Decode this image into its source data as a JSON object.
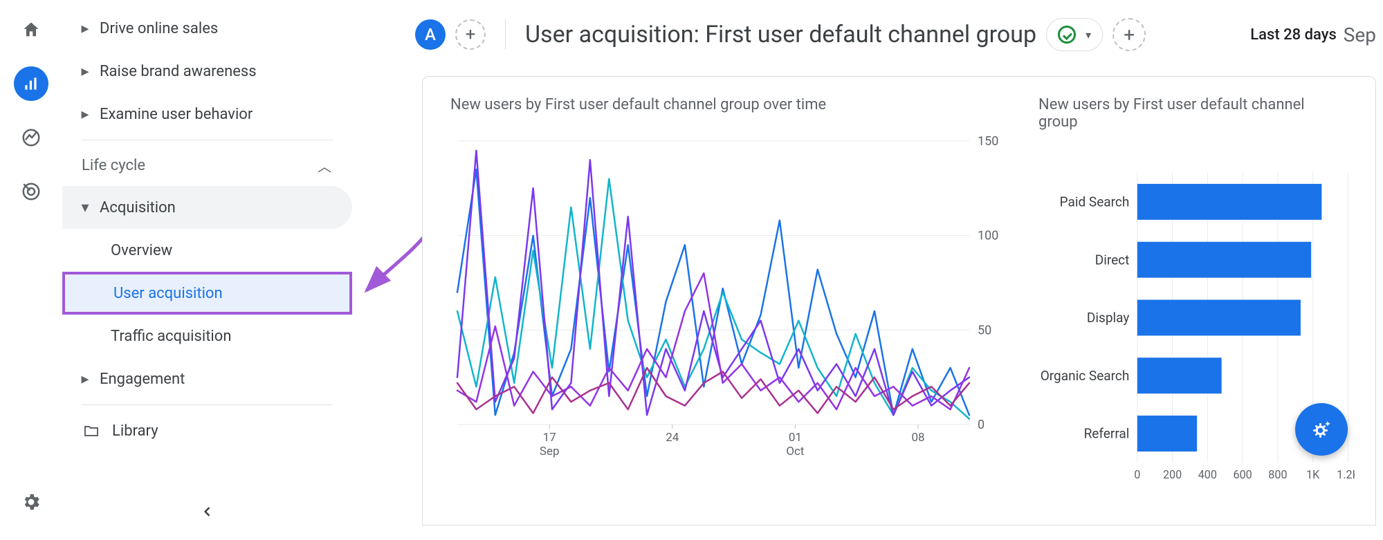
{
  "rail": {
    "icons": [
      "home",
      "reports",
      "explore",
      "advertising"
    ],
    "active_index": 1
  },
  "nav": {
    "objectives": [
      {
        "label": "Drive online sales"
      },
      {
        "label": "Raise brand awareness"
      },
      {
        "label": "Examine user behavior"
      }
    ],
    "section_label": "Life cycle",
    "acquisition": {
      "label": "Acquisition",
      "items": [
        {
          "label": "Overview"
        },
        {
          "label": "User acquisition",
          "selected": true
        },
        {
          "label": "Traffic acquisition"
        }
      ]
    },
    "engagement_label": "Engagement",
    "library_label": "Library"
  },
  "header": {
    "segment_letter": "A",
    "title": "User acquisition: First user default channel group",
    "date_range_label": "Last 28 days",
    "date_cutoff": "Sep"
  },
  "line_chart": {
    "title": "New users by First user default channel group over time",
    "type": "line",
    "ylim": [
      0,
      150
    ],
    "yticks": [
      0,
      50,
      100,
      150
    ],
    "x_ticks": [
      {
        "pos": 0.18,
        "top": "17",
        "bottom": "Sep"
      },
      {
        "pos": 0.42,
        "top": "24",
        "bottom": ""
      },
      {
        "pos": 0.66,
        "top": "01",
        "bottom": "Oct"
      },
      {
        "pos": 0.9,
        "top": "08",
        "bottom": ""
      }
    ],
    "plot_background": "#ffffff",
    "gridline_color": "#e8eaed",
    "line_width": 2.5,
    "series": [
      {
        "name": "Paid Search",
        "color": "#1a73e8",
        "values": [
          70,
          135,
          5,
          38,
          100,
          15,
          40,
          120,
          28,
          95,
          15,
          65,
          95,
          20,
          72,
          32,
          58,
          108,
          30,
          82,
          48,
          25,
          60,
          5,
          40,
          12,
          30,
          5
        ]
      },
      {
        "name": "Direct",
        "color": "#12b5cb",
        "values": [
          60,
          20,
          78,
          22,
          92,
          30,
          115,
          40,
          130,
          55,
          25,
          45,
          20,
          40,
          70,
          45,
          38,
          32,
          55,
          30,
          15,
          48,
          22,
          5,
          30,
          18,
          12,
          3
        ]
      },
      {
        "name": "Display",
        "color": "#7b39ed",
        "values": [
          25,
          145,
          12,
          35,
          125,
          8,
          22,
          140,
          15,
          110,
          5,
          40,
          18,
          60,
          25,
          40,
          55,
          22,
          40,
          18,
          32,
          15,
          40,
          5,
          28,
          10,
          18,
          25
        ]
      },
      {
        "name": "Organic Search",
        "color": "#9334e6",
        "values": [
          18,
          12,
          52,
          10,
          28,
          15,
          20,
          10,
          30,
          18,
          40,
          25,
          60,
          80,
          22,
          32,
          18,
          25,
          12,
          22,
          8,
          30,
          15,
          20,
          10,
          15,
          8,
          30
        ]
      },
      {
        "name": "Referral",
        "color": "#a8328f",
        "values": [
          22,
          8,
          15,
          20,
          6,
          25,
          12,
          18,
          22,
          8,
          30,
          15,
          10,
          22,
          28,
          14,
          24,
          10,
          18,
          6,
          20,
          12,
          25,
          8,
          15,
          20,
          10,
          22
        ]
      }
    ]
  },
  "bar_chart": {
    "title": "New users by First user default channel group",
    "type": "bar",
    "xlim": [
      0,
      1200
    ],
    "xticks": [
      {
        "pos": 0,
        "label": "0"
      },
      {
        "pos": 200,
        "label": "200"
      },
      {
        "pos": 400,
        "label": "400"
      },
      {
        "pos": 600,
        "label": "600"
      },
      {
        "pos": 800,
        "label": "800"
      },
      {
        "pos": 1000,
        "label": "1K"
      },
      {
        "pos": 1200,
        "label": "1.2K"
      }
    ],
    "bar_color": "#1a73e8",
    "gridline_color": "#e8eaed",
    "bars": [
      {
        "label": "Paid Search",
        "value": 1050
      },
      {
        "label": "Direct",
        "value": 990
      },
      {
        "label": "Display",
        "value": 930
      },
      {
        "label": "Organic Search",
        "value": 480
      },
      {
        "label": "Referral",
        "value": 340
      }
    ]
  },
  "annotation": {
    "arrow_color": "#a259d9"
  }
}
